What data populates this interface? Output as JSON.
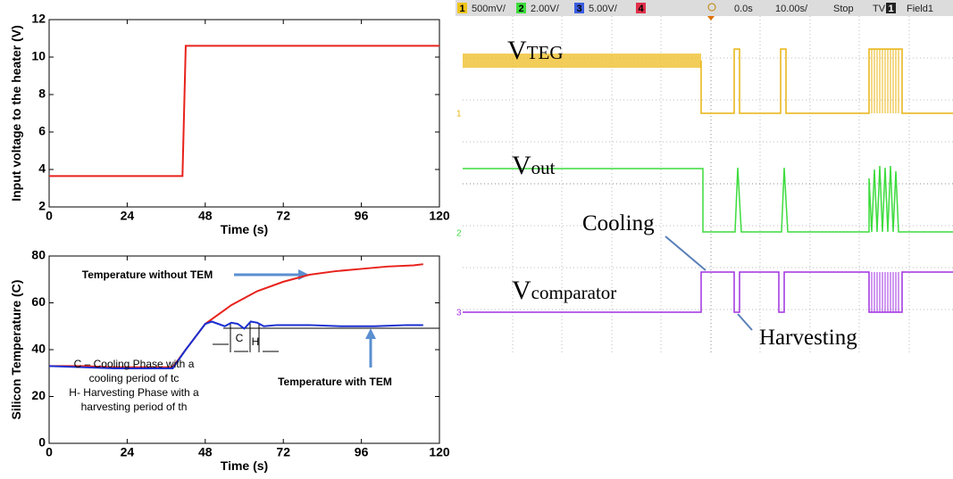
{
  "chart_data": [
    {
      "type": "line",
      "xlabel": "Time (s)",
      "ylabel": "Input voltage to the heater (V)",
      "xlim": [
        0,
        120
      ],
      "xticks": [
        0,
        24,
        48,
        72,
        96,
        120
      ],
      "ylim": [
        2,
        12
      ],
      "yticks": [
        2,
        4,
        6,
        8,
        10,
        12
      ],
      "series": [
        {
          "color": "#e8221c",
          "x": [
            0,
            41,
            42,
            120
          ],
          "values": [
            3.65,
            3.65,
            10.6,
            10.6
          ]
        }
      ]
    },
    {
      "type": "line",
      "xlabel": "Time (s)",
      "ylabel": "Silicon Temperature (C)",
      "xlim": [
        0,
        120
      ],
      "xticks": [
        0,
        24,
        48,
        72,
        96,
        120
      ],
      "ylim": [
        0,
        80
      ],
      "yticks": [
        0,
        20,
        40,
        60,
        80
      ],
      "series": [
        {
          "color": "#e8221c",
          "x": [
            0,
            10,
            20,
            30,
            38,
            42,
            48,
            56,
            64,
            72,
            80,
            88,
            96,
            104,
            112,
            115
          ],
          "values": [
            33,
            33,
            32.5,
            32.5,
            32.5,
            40,
            51,
            59,
            65,
            69,
            72,
            73.5,
            74.5,
            75.5,
            76,
            76.5
          ]
        },
        {
          "color": "#1a2fd0",
          "x": [
            0,
            10,
            20,
            30,
            38,
            42,
            48,
            50,
            54,
            56,
            58,
            60,
            62,
            64,
            66,
            70,
            80,
            90,
            100,
            110,
            115
          ],
          "values": [
            33,
            32.5,
            32,
            32,
            32,
            40,
            51,
            52,
            50,
            51.5,
            51,
            49,
            52,
            51.5,
            50,
            50.5,
            50.5,
            50,
            50,
            50.5,
            50.5
          ]
        }
      ],
      "annotations": [
        "Temperature without TEM",
        "Temperature with TEM",
        "C – Cooling Phase with a",
        "cooling period of tc",
        "H- Harvesting Phase with a",
        "harvesting period of th",
        "C",
        "H"
      ]
    },
    {
      "type": "scope",
      "channels": [
        {
          "label": "1",
          "scale": "500mV/",
          "color": "#f0c419"
        },
        {
          "label": "2",
          "scale": "2.00V/",
          "color": "#3ddc3d"
        },
        {
          "label": "3",
          "scale": "5.00V/",
          "color": "#3a5de0"
        },
        {
          "label": "4",
          "color": "#e0304a"
        }
      ],
      "time_offset": "0.0s",
      "time_scale": "10.00s/",
      "status": "Stop",
      "trigger": "TV",
      "trigger_channel": "1",
      "trigger_mode": "Field1",
      "signals": [
        {
          "name": "V",
          "sub": "TEG"
        },
        {
          "name": "V",
          "sub": "out"
        },
        {
          "name": "V",
          "sub": "comparator"
        }
      ],
      "markers": [
        "1",
        "2",
        "3"
      ],
      "annotations": [
        "Cooling",
        "Harvesting"
      ]
    }
  ]
}
